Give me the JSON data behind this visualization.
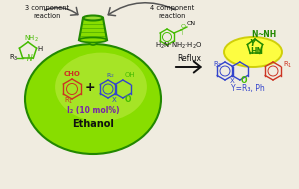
{
  "bg_color": "#f0ece0",
  "green": "#44bb00",
  "dark_green": "#228800",
  "flask_fill": "#88dd00",
  "flask_inner_fill": "#aaee22",
  "blue": "#3344cc",
  "red": "#cc3322",
  "purple": "#7722aa",
  "black": "#111111",
  "arrow_gray": "#555555",
  "yellow_fill": "#ffff33",
  "yellow_edge": "#cccc00",
  "text_3comp": "3 component\nreaction",
  "text_4comp": "4 component\nreaction",
  "label_reflux": "Reflux",
  "text_I2": "I₂ (10 mol%)",
  "text_ethanol": "Ethanol",
  "text_Y": "Y=R₃, Ph",
  "figw": 2.99,
  "figh": 1.89,
  "dpi": 100
}
